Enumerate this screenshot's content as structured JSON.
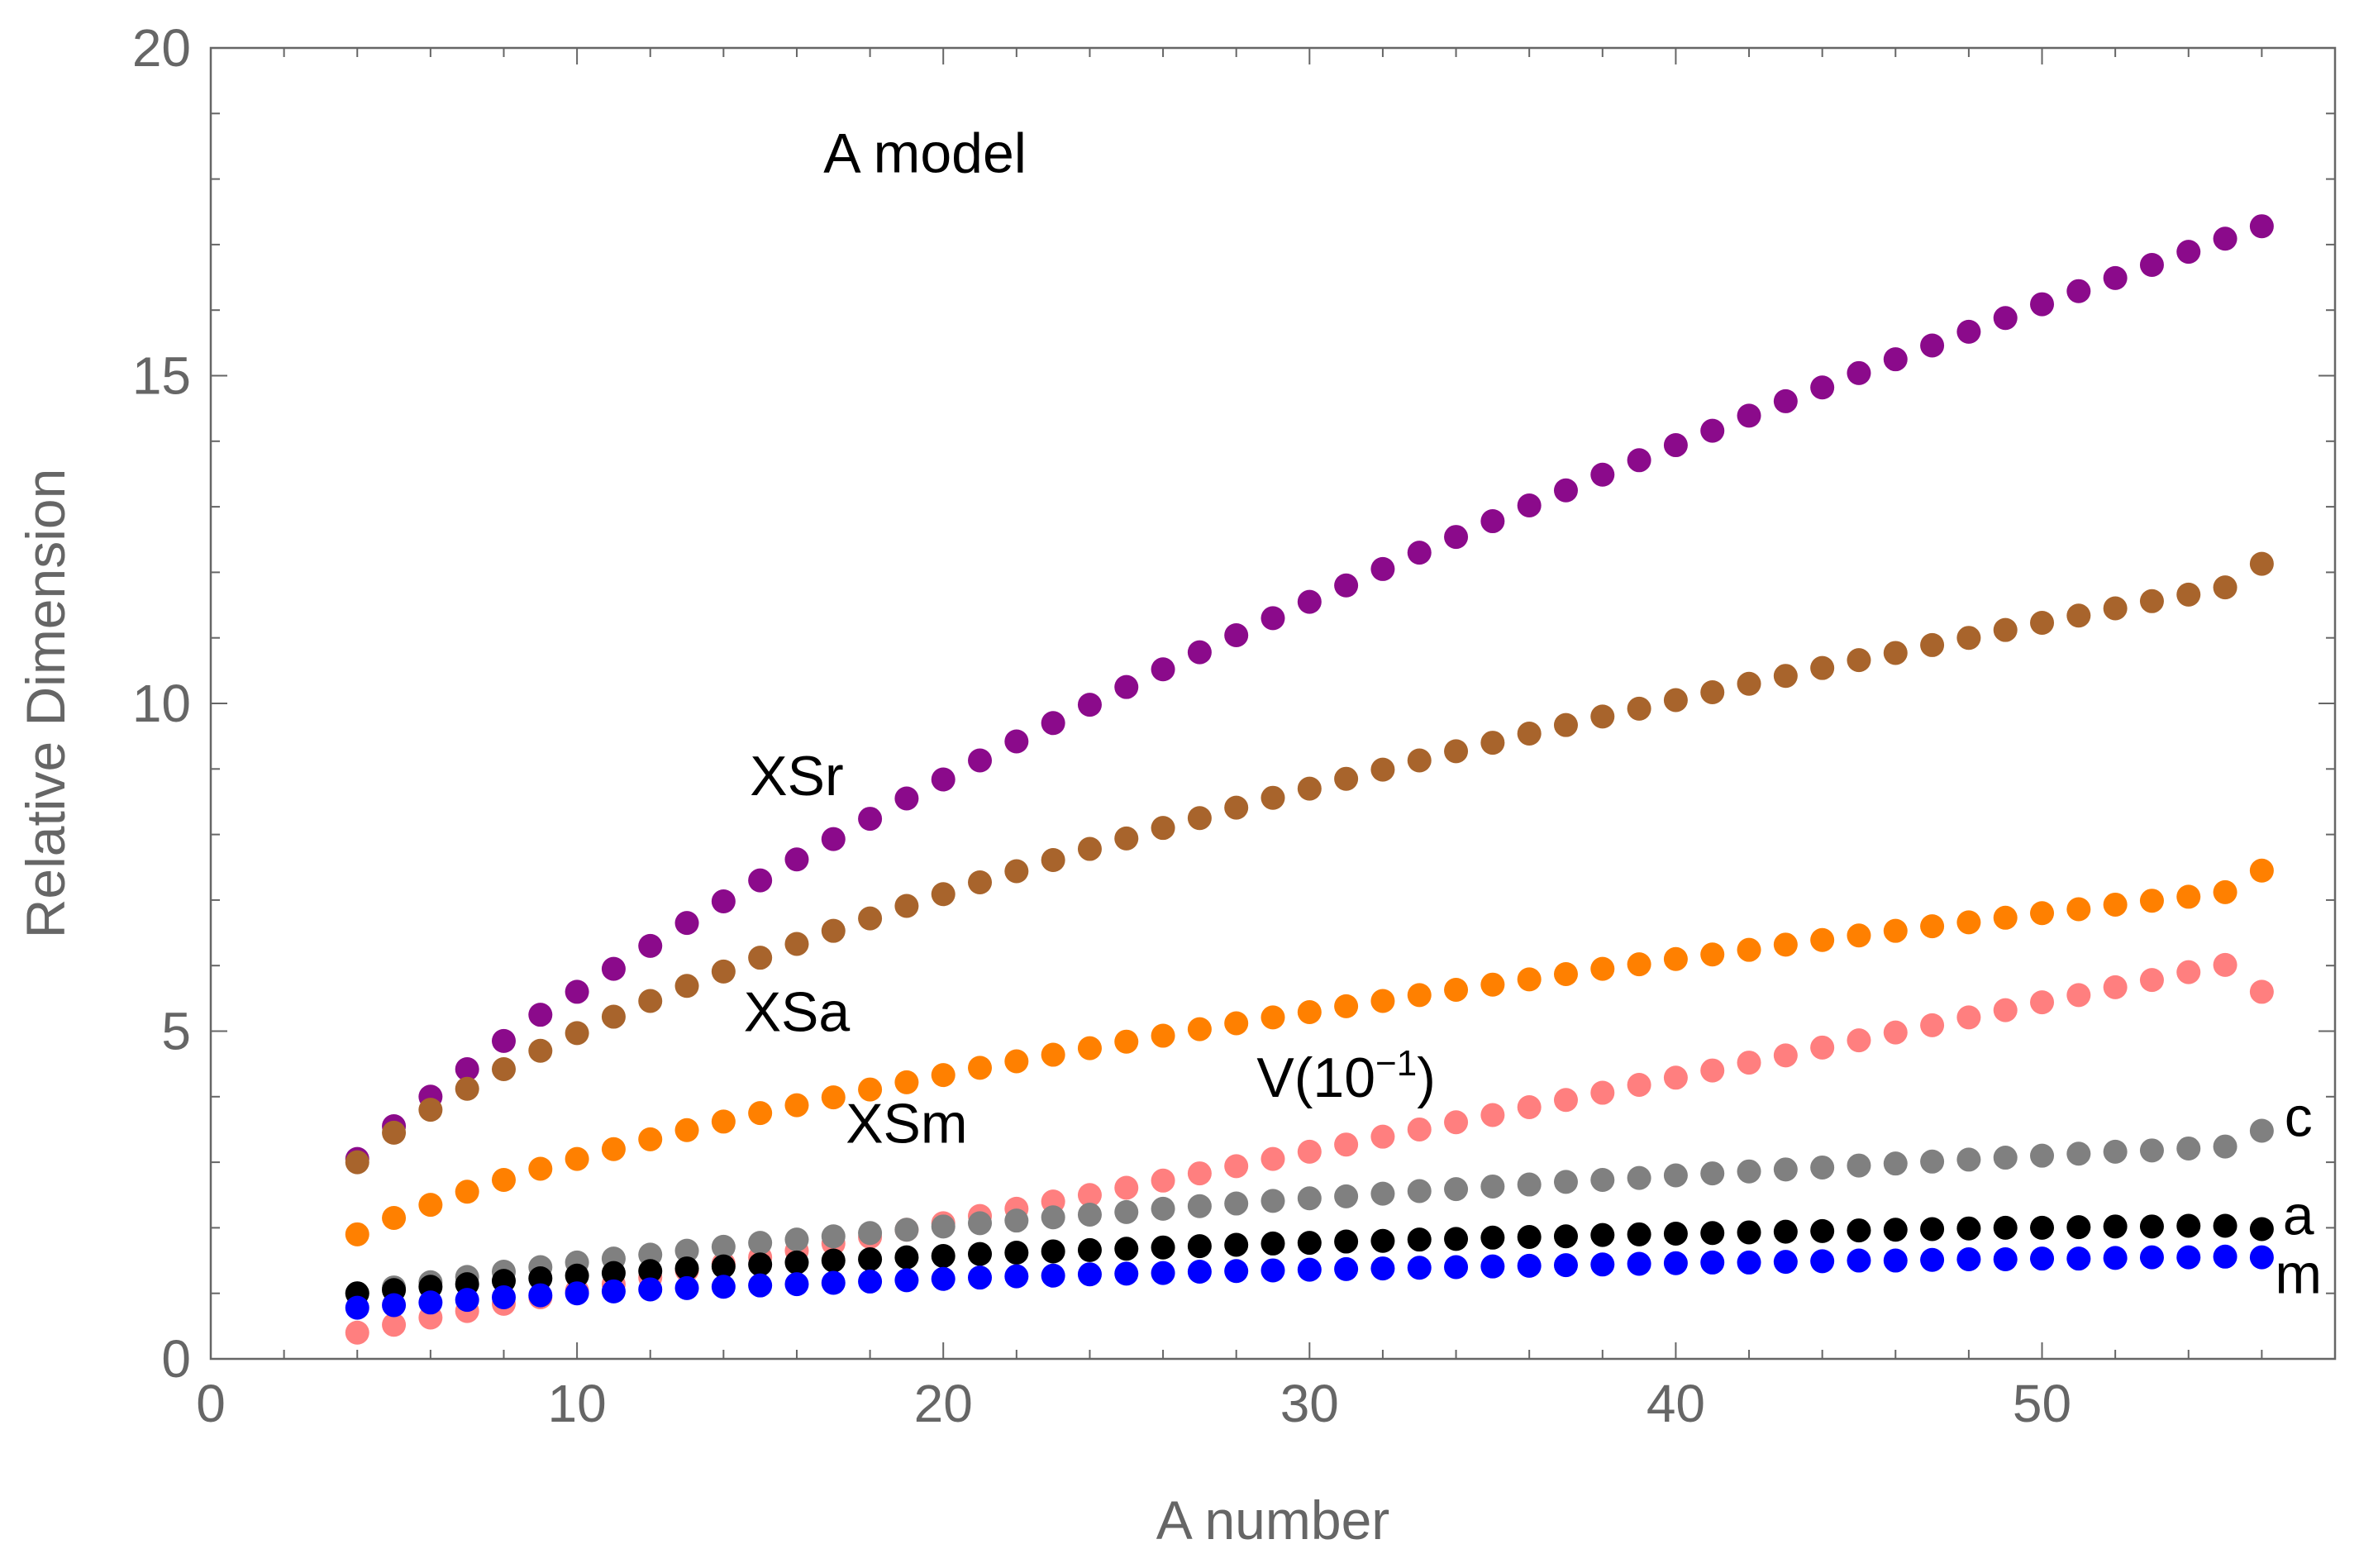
{
  "chart_data": {
    "type": "scatter",
    "title": "",
    "xlabel": "A number",
    "ylabel": "Relative Dimension",
    "xlim": [
      0,
      58
    ],
    "ylim": [
      0,
      20
    ],
    "x_ticks": [
      0,
      10,
      20,
      30,
      40,
      50
    ],
    "y_ticks": [
      0,
      5,
      10,
      15,
      20
    ],
    "x_tick_labels": [
      "0",
      "10",
      "20",
      "30",
      "40",
      "50"
    ],
    "y_tick_labels": [
      "0",
      "5",
      "10",
      "15",
      "20"
    ],
    "x_start": 4,
    "x_end": 56,
    "grid": false,
    "series": [
      {
        "name": "XSr",
        "color": "#8b0a8b",
        "values": [
          3.05,
          3.55,
          4.0,
          4.42,
          4.85,
          5.25,
          5.6,
          5.95,
          6.3,
          6.65,
          6.98,
          7.3,
          7.62,
          7.93,
          8.24,
          8.55,
          8.84,
          9.13,
          9.42,
          9.7,
          9.98,
          10.25,
          10.52,
          10.78,
          11.04,
          11.3,
          11.55,
          11.8,
          12.05,
          12.3,
          12.54,
          12.78,
          13.02,
          13.25,
          13.49,
          13.71,
          13.94,
          14.16,
          14.39,
          14.61,
          14.82,
          15.04,
          15.25,
          15.46,
          15.67,
          15.88,
          16.09,
          16.29,
          16.49,
          16.69,
          16.89,
          17.09,
          17.28
        ]
      },
      {
        "name": "XSa",
        "color": "#a8642c",
        "values": [
          3.0,
          3.45,
          3.8,
          4.12,
          4.42,
          4.7,
          4.97,
          5.22,
          5.46,
          5.69,
          5.91,
          6.12,
          6.33,
          6.53,
          6.72,
          6.91,
          7.09,
          7.27,
          7.44,
          7.61,
          7.78,
          7.94,
          8.1,
          8.25,
          8.41,
          8.56,
          8.7,
          8.85,
          8.99,
          9.13,
          9.27,
          9.4,
          9.54,
          9.67,
          9.8,
          9.92,
          10.05,
          10.17,
          10.3,
          10.42,
          10.54,
          10.66,
          10.77,
          10.89,
          11.0,
          11.12,
          11.23,
          11.34,
          11.45,
          11.56,
          11.66,
          11.77,
          12.13
        ]
      },
      {
        "name": "XSm",
        "color": "#ff8000",
        "values": [
          1.9,
          2.15,
          2.35,
          2.55,
          2.73,
          2.9,
          3.05,
          3.2,
          3.35,
          3.49,
          3.62,
          3.75,
          3.87,
          3.99,
          4.11,
          4.22,
          4.33,
          4.44,
          4.54,
          4.64,
          4.74,
          4.84,
          4.93,
          5.03,
          5.12,
          5.21,
          5.29,
          5.38,
          5.46,
          5.55,
          5.63,
          5.71,
          5.79,
          5.87,
          5.95,
          6.02,
          6.1,
          6.17,
          6.24,
          6.32,
          6.39,
          6.46,
          6.53,
          6.6,
          6.66,
          6.73,
          6.8,
          6.86,
          6.93,
          6.99,
          7.05,
          7.12,
          7.45
        ]
      },
      {
        "name": "V(10^-1)",
        "color": "#ff7f7f",
        "values": [
          0.4,
          0.52,
          0.63,
          0.73,
          0.84,
          0.94,
          1.04,
          1.14,
          1.24,
          1.35,
          1.45,
          1.55,
          1.65,
          1.76,
          1.86,
          1.97,
          2.07,
          2.18,
          2.29,
          2.4,
          2.5,
          2.61,
          2.72,
          2.83,
          2.94,
          3.05,
          3.16,
          3.27,
          3.39,
          3.5,
          3.61,
          3.72,
          3.84,
          3.95,
          4.06,
          4.18,
          4.29,
          4.4,
          4.52,
          4.63,
          4.75,
          4.86,
          4.98,
          5.09,
          5.21,
          5.32,
          5.44,
          5.55,
          5.67,
          5.78,
          5.9,
          6.01,
          5.6
        ]
      },
      {
        "name": "c",
        "color": "#808080",
        "values": [
          1.0,
          1.09,
          1.17,
          1.25,
          1.33,
          1.4,
          1.47,
          1.53,
          1.59,
          1.65,
          1.71,
          1.77,
          1.82,
          1.87,
          1.92,
          1.97,
          2.02,
          2.07,
          2.11,
          2.16,
          2.2,
          2.24,
          2.29,
          2.33,
          2.37,
          2.41,
          2.45,
          2.48,
          2.52,
          2.56,
          2.59,
          2.63,
          2.66,
          2.7,
          2.73,
          2.76,
          2.8,
          2.83,
          2.86,
          2.89,
          2.92,
          2.95,
          2.98,
          3.01,
          3.04,
          3.07,
          3.1,
          3.13,
          3.16,
          3.18,
          3.21,
          3.24,
          3.48
        ]
      },
      {
        "name": "a",
        "color": "#000000",
        "values": [
          1.0,
          1.05,
          1.1,
          1.14,
          1.19,
          1.23,
          1.27,
          1.31,
          1.34,
          1.38,
          1.41,
          1.44,
          1.47,
          1.5,
          1.52,
          1.55,
          1.57,
          1.6,
          1.62,
          1.64,
          1.66,
          1.68,
          1.7,
          1.72,
          1.74,
          1.76,
          1.77,
          1.79,
          1.8,
          1.82,
          1.83,
          1.85,
          1.86,
          1.87,
          1.89,
          1.9,
          1.91,
          1.92,
          1.93,
          1.94,
          1.95,
          1.96,
          1.97,
          1.98,
          1.99,
          2.0,
          2.0,
          2.01,
          2.02,
          2.02,
          2.03,
          2.03,
          1.98
        ]
      },
      {
        "name": "m",
        "color": "#0000ff",
        "values": [
          0.78,
          0.82,
          0.86,
          0.9,
          0.94,
          0.97,
          1.0,
          1.03,
          1.06,
          1.08,
          1.1,
          1.12,
          1.14,
          1.16,
          1.18,
          1.2,
          1.22,
          1.24,
          1.26,
          1.27,
          1.29,
          1.3,
          1.31,
          1.33,
          1.34,
          1.35,
          1.36,
          1.37,
          1.38,
          1.39,
          1.4,
          1.41,
          1.42,
          1.43,
          1.44,
          1.45,
          1.46,
          1.47,
          1.47,
          1.48,
          1.49,
          1.5,
          1.5,
          1.51,
          1.52,
          1.52,
          1.53,
          1.53,
          1.54,
          1.55,
          1.55,
          1.56,
          1.55
        ]
      }
    ],
    "annotations": [
      {
        "text": "A model",
        "x": 19.5,
        "y": 18.1
      },
      {
        "text": "XSr",
        "x": 16.0,
        "y": 8.6
      },
      {
        "text": "XSa",
        "x": 16.0,
        "y": 5.0
      },
      {
        "text": "XSm",
        "x": 19.0,
        "y": 3.3
      },
      {
        "text": "V(10",
        "sup": "−1",
        "suffix": ")",
        "x": 31.0,
        "y": 4.0
      },
      {
        "text": "c",
        "x": 57.0,
        "y": 3.4
      },
      {
        "text": "a",
        "x": 57.0,
        "y": 1.9
      },
      {
        "text": "m",
        "x": 57.0,
        "y": 1.0
      }
    ]
  }
}
